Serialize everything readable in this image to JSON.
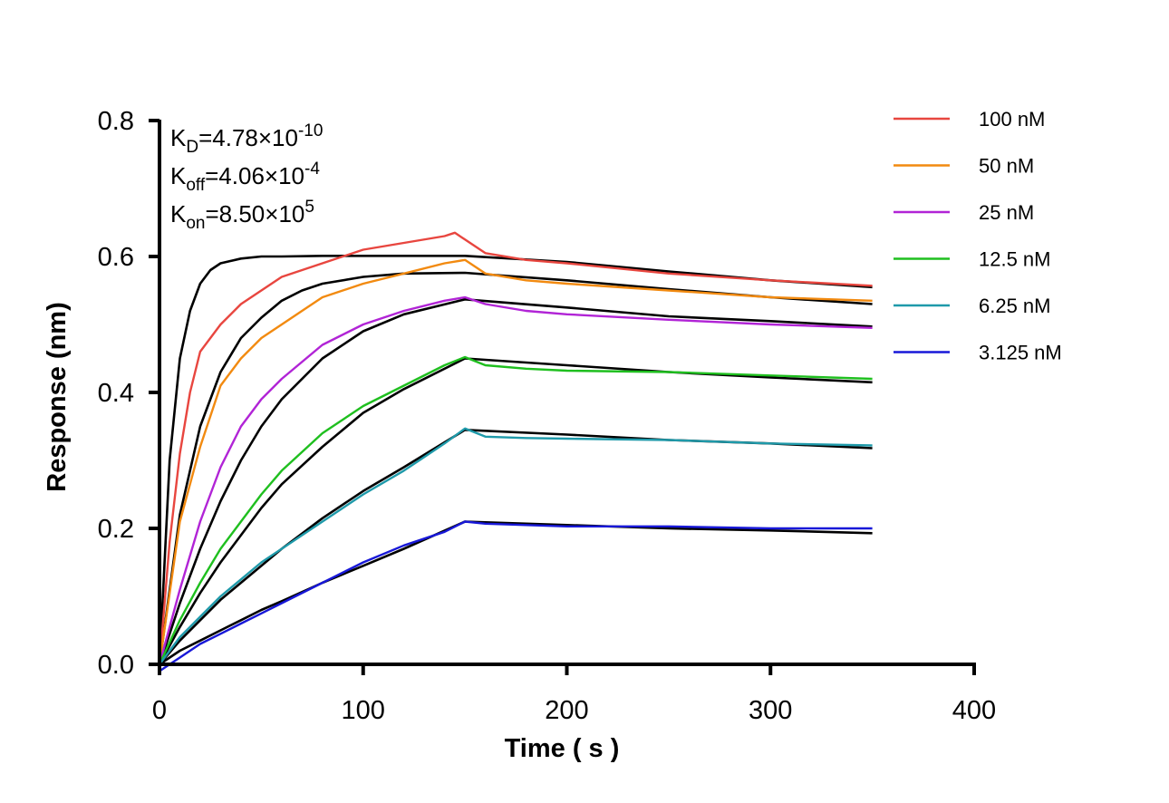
{
  "chart_data": {
    "type": "line",
    "title": "",
    "xlabel": "Time ( s )",
    "ylabel": "Response (nm)",
    "xlim": [
      0,
      400
    ],
    "ylim": [
      0,
      0.8
    ],
    "x_ticks": [
      "0",
      "100",
      "200",
      "300",
      "400"
    ],
    "y_ticks": [
      "0.0",
      "0.2",
      "0.4",
      "0.6",
      "0.8"
    ],
    "grid": false,
    "legend_position": "top-right",
    "annotations": [
      {
        "main": "K",
        "sub": "D",
        "value": "=4.78×10",
        "exp": "-10"
      },
      {
        "main": "K",
        "sub": "off",
        "value": "=4.06×10",
        "exp": "-4"
      },
      {
        "main": "K",
        "sub": "on",
        "value": "=8.50×10",
        "exp": "5"
      }
    ],
    "association_end_s": 150,
    "dissociation_end_s": 350,
    "series": [
      {
        "name": "100 nM",
        "color": "#e8463f",
        "x": [
          0,
          5,
          10,
          15,
          20,
          30,
          40,
          50,
          60,
          80,
          100,
          120,
          140,
          145,
          150,
          160,
          180,
          200,
          250,
          300,
          350
        ],
        "y": [
          0,
          0.18,
          0.31,
          0.4,
          0.46,
          0.5,
          0.53,
          0.55,
          0.57,
          0.59,
          0.61,
          0.62,
          0.63,
          0.635,
          0.625,
          0.605,
          0.595,
          0.59,
          0.575,
          0.565,
          0.557
        ]
      },
      {
        "name": "50 nM",
        "color": "#f28a10",
        "x": [
          0,
          10,
          20,
          30,
          40,
          50,
          60,
          70,
          80,
          100,
          120,
          140,
          150,
          160,
          180,
          200,
          250,
          300,
          350
        ],
        "y": [
          0,
          0.21,
          0.32,
          0.41,
          0.45,
          0.48,
          0.5,
          0.52,
          0.54,
          0.56,
          0.575,
          0.59,
          0.595,
          0.575,
          0.565,
          0.56,
          0.55,
          0.54,
          0.535
        ]
      },
      {
        "name": "25 nM",
        "color": "#b124d6",
        "x": [
          0,
          10,
          20,
          30,
          40,
          50,
          60,
          80,
          100,
          120,
          140,
          150,
          160,
          180,
          200,
          250,
          300,
          350
        ],
        "y": [
          0,
          0.11,
          0.21,
          0.29,
          0.35,
          0.39,
          0.42,
          0.47,
          0.5,
          0.52,
          0.535,
          0.54,
          0.53,
          0.52,
          0.515,
          0.507,
          0.5,
          0.495
        ]
      },
      {
        "name": "12.5 nM",
        "color": "#1fbf1f",
        "x": [
          0,
          10,
          20,
          30,
          40,
          50,
          60,
          80,
          100,
          120,
          140,
          150,
          160,
          180,
          200,
          250,
          300,
          350
        ],
        "y": [
          0,
          0.065,
          0.12,
          0.17,
          0.21,
          0.25,
          0.285,
          0.34,
          0.38,
          0.41,
          0.44,
          0.452,
          0.44,
          0.435,
          0.432,
          0.43,
          0.425,
          0.42
        ]
      },
      {
        "name": "6.25 nM",
        "color": "#1f9aaa",
        "x": [
          0,
          10,
          20,
          30,
          40,
          50,
          60,
          80,
          100,
          120,
          140,
          150,
          160,
          180,
          200,
          250,
          300,
          350
        ],
        "y": [
          0,
          0.04,
          0.07,
          0.1,
          0.125,
          0.15,
          0.17,
          0.21,
          0.25,
          0.285,
          0.325,
          0.347,
          0.335,
          0.333,
          0.332,
          0.33,
          0.325,
          0.322
        ]
      },
      {
        "name": "3.125 nM",
        "color": "#1818d8",
        "x": [
          0,
          5,
          10,
          20,
          30,
          40,
          50,
          60,
          80,
          100,
          120,
          140,
          150,
          160,
          180,
          200,
          250,
          300,
          350
        ],
        "y": [
          -0.01,
          0.0,
          0.01,
          0.03,
          0.045,
          0.06,
          0.075,
          0.09,
          0.12,
          0.15,
          0.175,
          0.195,
          0.21,
          0.207,
          0.205,
          0.203,
          0.203,
          0.2,
          0.2
        ]
      }
    ],
    "fit_series": [
      {
        "x": [
          0,
          5,
          10,
          15,
          20,
          25,
          30,
          40,
          50,
          60,
          80,
          100,
          120,
          150,
          200,
          250,
          300,
          350
        ],
        "y": [
          0,
          0.3,
          0.45,
          0.52,
          0.56,
          0.58,
          0.59,
          0.597,
          0.6,
          0.6,
          0.601,
          0.601,
          0.601,
          0.601,
          0.592,
          0.578,
          0.565,
          0.555
        ]
      },
      {
        "x": [
          0,
          10,
          20,
          30,
          40,
          50,
          60,
          70,
          80,
          100,
          120,
          150,
          200,
          250,
          300,
          350
        ],
        "y": [
          0,
          0.22,
          0.35,
          0.43,
          0.48,
          0.51,
          0.535,
          0.55,
          0.56,
          0.57,
          0.575,
          0.576,
          0.565,
          0.552,
          0.54,
          0.53
        ]
      },
      {
        "x": [
          0,
          10,
          20,
          30,
          40,
          50,
          60,
          80,
          100,
          120,
          150,
          200,
          250,
          300,
          350
        ],
        "y": [
          0,
          0.09,
          0.17,
          0.24,
          0.3,
          0.35,
          0.39,
          0.45,
          0.49,
          0.515,
          0.537,
          0.525,
          0.512,
          0.505,
          0.497
        ]
      },
      {
        "x": [
          0,
          10,
          20,
          30,
          40,
          50,
          60,
          80,
          100,
          120,
          150,
          200,
          250,
          300,
          350
        ],
        "y": [
          0,
          0.055,
          0.105,
          0.15,
          0.19,
          0.23,
          0.265,
          0.32,
          0.37,
          0.405,
          0.45,
          0.44,
          0.43,
          0.422,
          0.415
        ]
      },
      {
        "x": [
          0,
          10,
          20,
          30,
          40,
          50,
          60,
          80,
          100,
          120,
          150,
          200,
          250,
          300,
          350
        ],
        "y": [
          0,
          0.035,
          0.065,
          0.095,
          0.12,
          0.145,
          0.17,
          0.215,
          0.255,
          0.29,
          0.345,
          0.338,
          0.33,
          0.325,
          0.318
        ]
      },
      {
        "x": [
          0,
          10,
          20,
          30,
          40,
          50,
          60,
          80,
          100,
          120,
          150,
          200,
          250,
          300,
          350
        ],
        "y": [
          0,
          0.02,
          0.035,
          0.05,
          0.065,
          0.08,
          0.093,
          0.12,
          0.145,
          0.17,
          0.21,
          0.205,
          0.2,
          0.197,
          0.193
        ]
      }
    ]
  }
}
